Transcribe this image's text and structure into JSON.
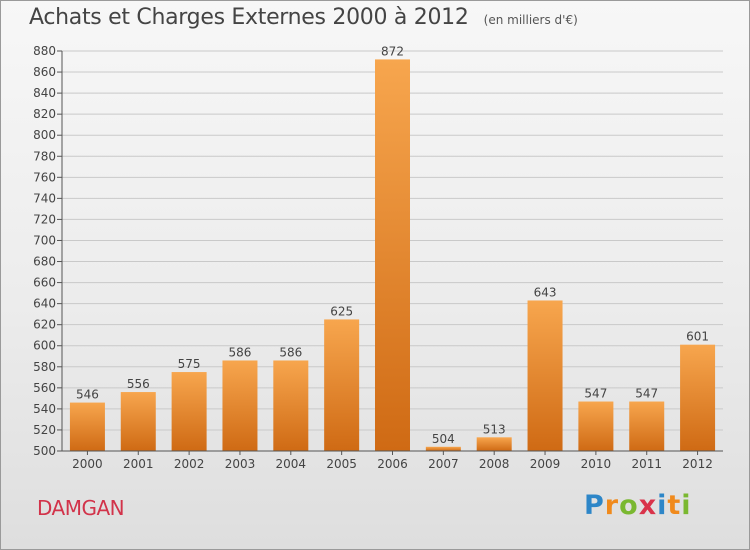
{
  "title": "Achats et Charges Externes 2000 à 2012",
  "subtitle": "(en milliers d'€)",
  "commune": "DAMGAN",
  "logo": {
    "letters": [
      "P",
      "r",
      "o",
      "x",
      "i",
      "t",
      "i"
    ],
    "colors": [
      "#2d86c8",
      "#f08a1c",
      "#7ab830",
      "#d9334a",
      "#2d86c8",
      "#f08a1c",
      "#7ab830"
    ]
  },
  "colors": {
    "bar_light": "#f7a64e",
    "bar_dark": "#cf6a14",
    "grid": "#c9c9c9",
    "axis": "#555555",
    "text": "#444444"
  },
  "chart_data": {
    "type": "bar",
    "categories": [
      "2000",
      "2001",
      "2002",
      "2003",
      "2004",
      "2005",
      "2006",
      "2007",
      "2008",
      "2009",
      "2010",
      "2011",
      "2012"
    ],
    "values": [
      546,
      556,
      575,
      586,
      586,
      625,
      872,
      504,
      513,
      643,
      547,
      547,
      601
    ],
    "ylim": [
      500,
      880
    ],
    "yticks": [
      500,
      520,
      540,
      560,
      580,
      600,
      620,
      640,
      660,
      680,
      700,
      720,
      740,
      760,
      780,
      800,
      820,
      840,
      860,
      880
    ],
    "grid": true,
    "data_labels": true,
    "xlabel": "",
    "ylabel": ""
  }
}
